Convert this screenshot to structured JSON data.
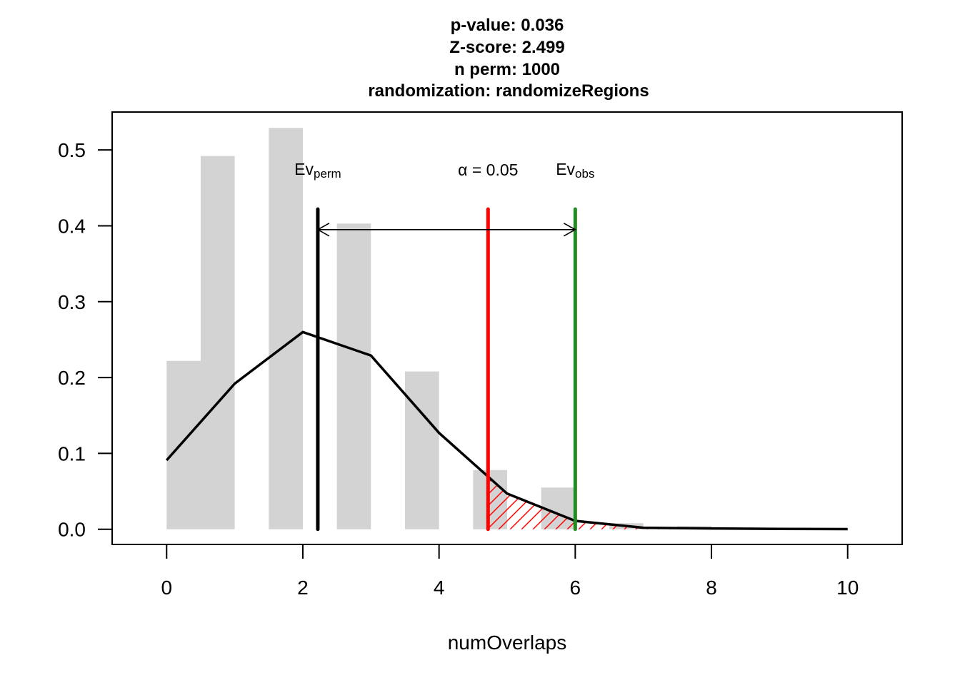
{
  "chart_data": {
    "type": "bar",
    "title_lines": [
      "p-value:  0.036",
      "Z-score:  2.499",
      "n perm:  1000",
      "randomization:  randomizeRegions"
    ],
    "xlabel": "numOverlaps",
    "ylabel": "",
    "xlim": [
      -0.8,
      10.8
    ],
    "ylim": [
      -0.02,
      0.55
    ],
    "xticks": [
      0,
      2,
      4,
      6,
      8,
      10
    ],
    "yticks": [
      0.0,
      0.1,
      0.2,
      0.3,
      0.4,
      0.5
    ],
    "ytick_labels": [
      "0.0",
      "0.1",
      "0.2",
      "0.3",
      "0.4",
      "0.5"
    ],
    "histogram": {
      "color": "#d3d3d3",
      "bars": [
        {
          "x0": 0.0,
          "x1": 0.5,
          "value": 0.222
        },
        {
          "x0": 0.5,
          "x1": 1.0,
          "value": 0.492
        },
        {
          "x0": 1.5,
          "x1": 2.0,
          "value": 0.529
        },
        {
          "x0": 2.5,
          "x1": 3.0,
          "value": 0.403
        },
        {
          "x0": 3.5,
          "x1": 4.0,
          "value": 0.208
        },
        {
          "x0": 4.5,
          "x1": 5.0,
          "value": 0.078
        },
        {
          "x0": 5.5,
          "x1": 6.0,
          "value": 0.055
        },
        {
          "x0": 6.5,
          "x1": 7.0,
          "value": 0.008
        },
        {
          "x0": 7.5,
          "x1": 8.0,
          "value": 0.004
        }
      ]
    },
    "density_line": {
      "color": "#000000",
      "x": [
        0,
        1,
        2,
        3,
        4,
        5,
        6,
        7,
        8,
        9,
        10
      ],
      "y": [
        0.091,
        0.192,
        0.26,
        0.229,
        0.127,
        0.047,
        0.011,
        0.002,
        0.001,
        0.0005,
        0.0002
      ]
    },
    "ev_perm": {
      "x": 2.22,
      "label": "Ev",
      "subscript": "perm",
      "color": "#000000"
    },
    "alpha": {
      "x": 4.72,
      "label": "α = 0.05",
      "color": "#ff0000"
    },
    "ev_obs": {
      "x": 6.0,
      "label": "Ev",
      "subscript": "obs",
      "color": "#228b22"
    },
    "arrow": {
      "x0": 2.22,
      "x1": 6.0,
      "y": 0.395
    },
    "tail_hatch": {
      "from_x": 4.72,
      "color": "#ff0000"
    }
  }
}
